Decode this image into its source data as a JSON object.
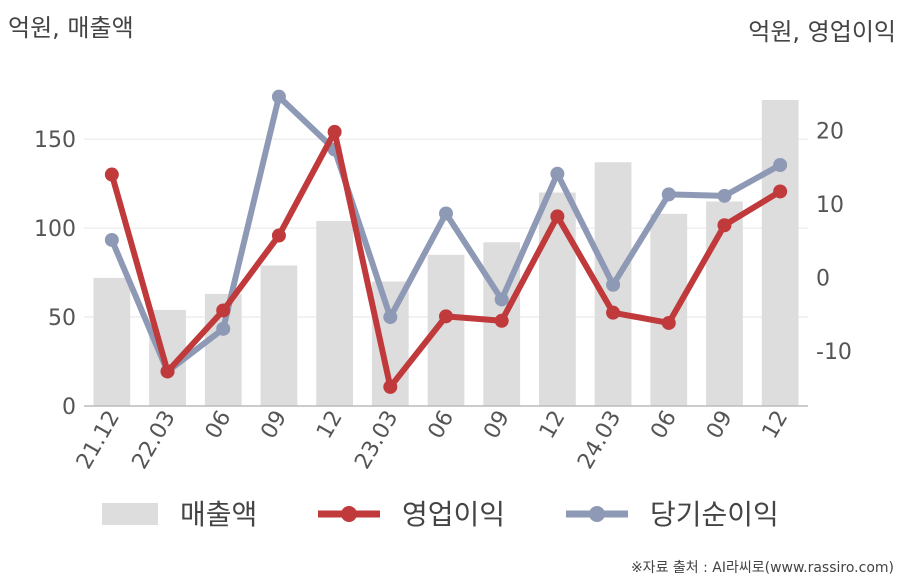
{
  "chart_data": {
    "type": "bar+line",
    "left_unit": "억원, 매출액",
    "right_unit": "억원, 영업이익",
    "categories": [
      "21.12",
      "22.03",
      "06",
      "09",
      "12",
      "23.03",
      "06",
      "09",
      "12",
      "24.03",
      "06",
      "09",
      "12"
    ],
    "bar_series": {
      "name": "매출액",
      "axis": "left",
      "color": "#dddddd",
      "values": [
        72,
        54,
        63,
        79,
        104,
        70,
        85,
        92,
        120,
        137,
        108,
        115,
        172
      ]
    },
    "line_series": [
      {
        "name": "영업이익",
        "axis": "right",
        "color": "#c0393b",
        "values": [
          14.0,
          -12.8,
          -4.5,
          5.7,
          19.8,
          -14.9,
          -5.3,
          -5.9,
          8.3,
          -4.8,
          -6.2,
          7.1,
          11.7
        ]
      },
      {
        "name": "당기순이익",
        "axis": "right",
        "color": "#8e9ab5",
        "values": [
          5.1,
          -12.8,
          -7.0,
          24.6,
          17.4,
          -5.4,
          8.7,
          -3.0,
          14.1,
          -1.0,
          11.3,
          11.1,
          15.3
        ]
      }
    ],
    "left_axis": {
      "ticks": [
        0,
        50,
        100,
        150
      ],
      "ylim": [
        0,
        190
      ]
    },
    "right_axis": {
      "ticks": [
        -10,
        0,
        10,
        20
      ],
      "ylim": [
        -17.5,
        28.5
      ]
    },
    "grid": true,
    "legend_position": "bottom"
  },
  "source_text": "※자료 출처 : AI라씨로(www.rassiro.com)"
}
